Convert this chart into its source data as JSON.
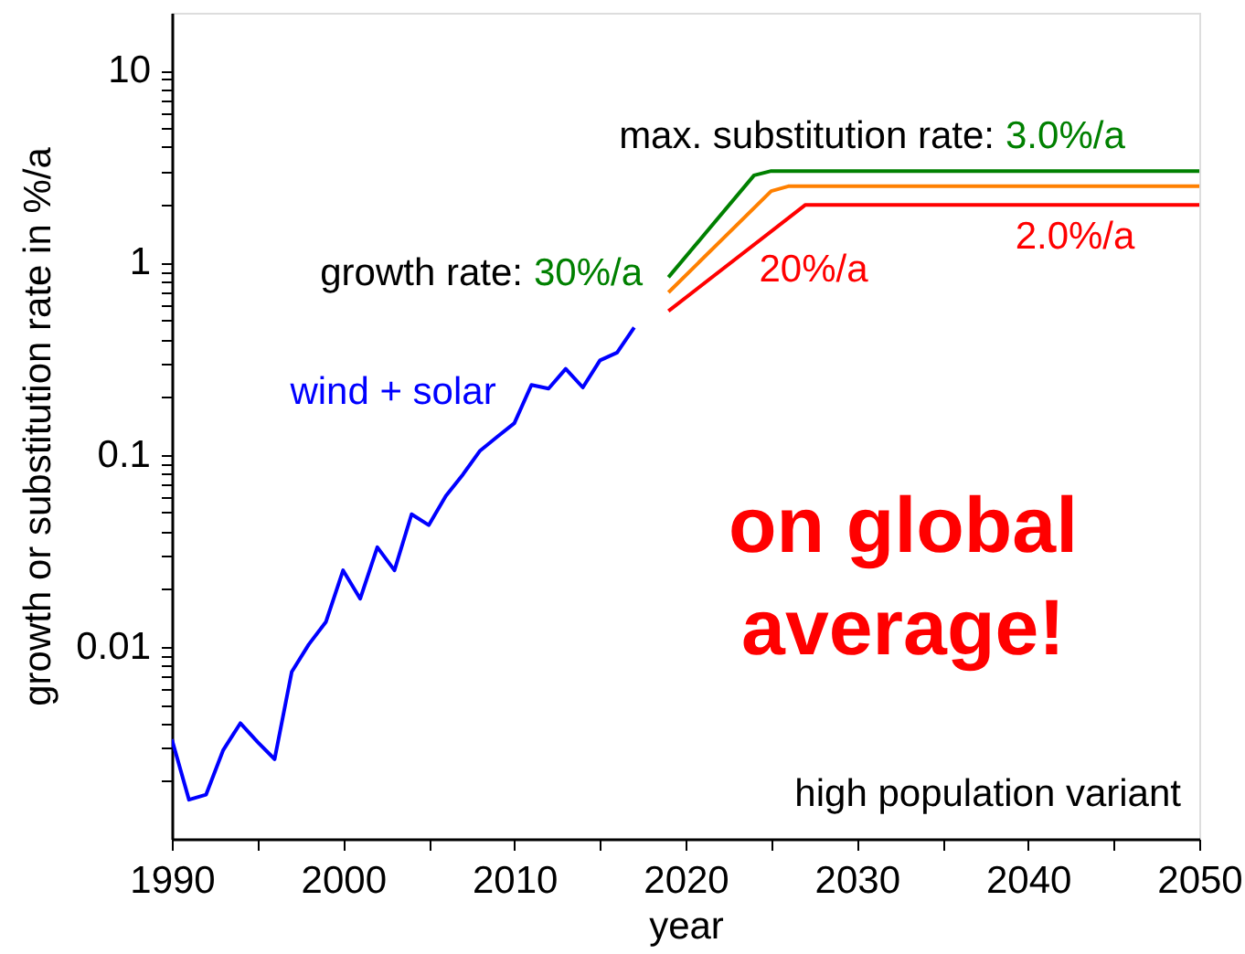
{
  "chart_data": {
    "type": "line",
    "xlabel": "year",
    "ylabel": "growth or substitution rate in %/a",
    "xlim": [
      1990,
      2050
    ],
    "ylim": [
      0.001,
      20
    ],
    "log": true,
    "grid": false,
    "legend": false,
    "xticks": [
      1990,
      {
        "value": 1995,
        "label": null
      },
      2000,
      {
        "value": 2005,
        "label": null
      },
      2010,
      {
        "value": 2015,
        "label": null
      },
      2020,
      {
        "value": 2025,
        "label": null
      },
      2030,
      {
        "value": 2035,
        "label": null
      },
      2040,
      {
        "value": 2045,
        "label": null
      },
      2050
    ],
    "yticks": [
      {
        "value": 0.002,
        "label": null
      },
      {
        "value": 0.003,
        "label": null
      },
      {
        "value": 0.004,
        "label": null
      },
      {
        "value": 0.005,
        "label": null
      },
      {
        "value": 0.006,
        "label": null
      },
      {
        "value": 0.007,
        "label": null
      },
      {
        "value": 0.008,
        "label": null
      },
      {
        "value": 0.009,
        "label": null
      },
      0.01,
      {
        "value": 0.02,
        "label": null
      },
      {
        "value": 0.03,
        "label": null
      },
      {
        "value": 0.04,
        "label": null
      },
      {
        "value": 0.05,
        "label": null
      },
      {
        "value": 0.06,
        "label": null
      },
      {
        "value": 0.07,
        "label": null
      },
      {
        "value": 0.08,
        "label": null
      },
      {
        "value": 0.09,
        "label": null
      },
      0.1,
      {
        "value": 0.2,
        "label": null
      },
      {
        "value": 0.3,
        "label": null
      },
      {
        "value": 0.4,
        "label": null
      },
      {
        "value": 0.5,
        "label": null
      },
      {
        "value": 0.6,
        "label": null
      },
      {
        "value": 0.7,
        "label": null
      },
      {
        "value": 0.8,
        "label": null
      },
      {
        "value": 0.9,
        "label": null
      },
      1,
      {
        "value": 2,
        "label": null
      },
      {
        "value": 3,
        "label": null
      },
      {
        "value": 4,
        "label": null
      },
      {
        "value": 5,
        "label": null
      },
      {
        "value": 6,
        "label": null
      },
      {
        "value": 7,
        "label": null
      },
      {
        "value": 8,
        "label": null
      },
      {
        "value": 9,
        "label": null
      },
      10
    ],
    "series": [
      {
        "name": "wind + solar",
        "color": "#0000ff",
        "x": [
          1990,
          1991,
          1992,
          1993,
          1994,
          1995,
          1996,
          1997,
          1998,
          1999,
          2000,
          2001,
          2002,
          2003,
          2004,
          2005,
          2006,
          2007,
          2008,
          2009,
          2010,
          2011,
          2012,
          2013,
          2014,
          2015,
          2016,
          2017
        ],
        "values": [
          0.0033,
          0.0016,
          0.0017,
          0.0029,
          0.004,
          0.0032,
          0.0026,
          0.0074,
          0.0103,
          0.0135,
          0.025,
          0.0178,
          0.033,
          0.025,
          0.049,
          0.043,
          0.061,
          0.079,
          0.105,
          0.124,
          0.146,
          0.231,
          0.221,
          0.28,
          0.224,
          0.31,
          0.34,
          0.46
        ]
      },
      {
        "color": "#008000",
        "x": [
          2019,
          2024,
          2025,
          2050
        ],
        "values": [
          0.84,
          2.85,
          3.0,
          3.0
        ]
      },
      {
        "color": "#ff8000",
        "x": [
          2019,
          2025,
          2026,
          2050
        ],
        "values": [
          0.7,
          2.36,
          2.5,
          2.5
        ]
      },
      {
        "color": "#ff0000",
        "x": [
          2019,
          2027,
          2050
        ],
        "values": [
          0.56,
          2.0,
          2.0
        ]
      }
    ],
    "annotations": [
      "growth rate:",
      "30%/a",
      "max. substitution rate:",
      "3.0%/a",
      "20%/a",
      "2.0%/a",
      "on global\naverage!",
      "high population variant"
    ]
  }
}
